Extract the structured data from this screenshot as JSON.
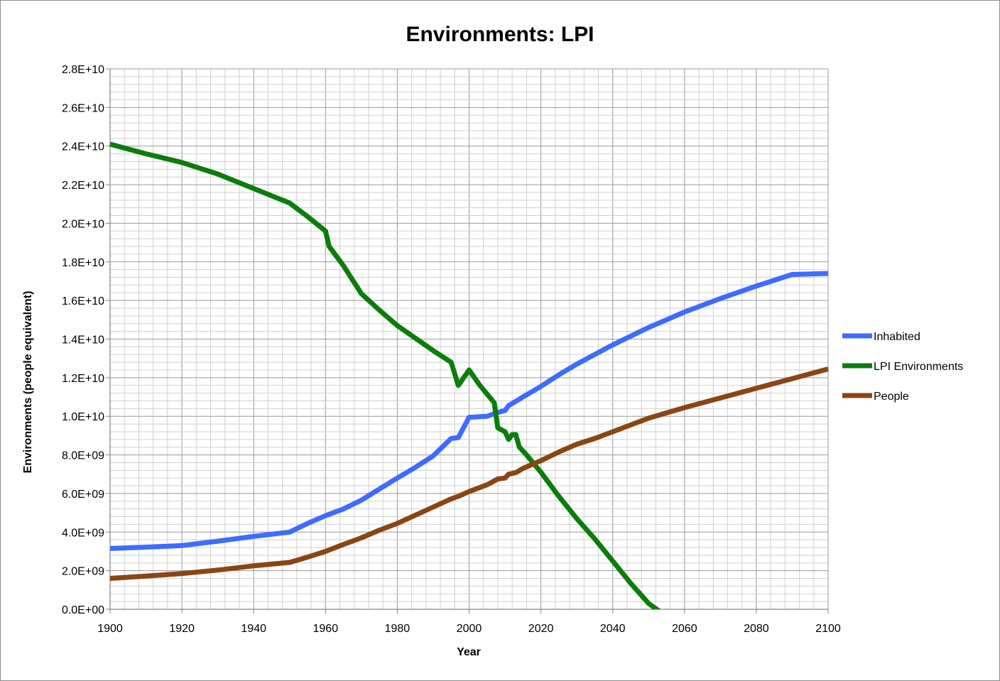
{
  "chart_data": {
    "type": "line",
    "title": "Environments: LPI",
    "xlabel": "Year",
    "ylabel": "Environments (people equivalent)",
    "xlim": [
      1900,
      2100
    ],
    "ylim": [
      0,
      28000000000
    ],
    "x_ticks": [
      "1900",
      "1920",
      "1940",
      "1960",
      "1980",
      "2000",
      "2020",
      "2040",
      "2060",
      "2080",
      "2100"
    ],
    "y_ticks": [
      "0.0E+00",
      "2.0E+09",
      "4.0E+09",
      "6.0E+09",
      "8.0E+09",
      "1.0E+10",
      "1.2E+10",
      "1.4E+10",
      "1.6E+10",
      "1.8E+10",
      "2.0E+10",
      "2.2E+10",
      "2.4E+10",
      "2.6E+10",
      "2.8E+10"
    ],
    "grid": true,
    "legend_position": "right",
    "series": [
      {
        "name": "Inhabited",
        "color": "#3d6cff",
        "points": [
          [
            1900,
            3150000000
          ],
          [
            1910,
            3220000000
          ],
          [
            1920,
            3300000000
          ],
          [
            1930,
            3530000000
          ],
          [
            1940,
            3780000000
          ],
          [
            1950,
            4000000000
          ],
          [
            1955,
            4450000000
          ],
          [
            1960,
            4850000000
          ],
          [
            1965,
            5200000000
          ],
          [
            1970,
            5650000000
          ],
          [
            1975,
            6230000000
          ],
          [
            1980,
            6800000000
          ],
          [
            1985,
            7350000000
          ],
          [
            1990,
            7950000000
          ],
          [
            1995,
            8850000000
          ],
          [
            1997,
            8900000000
          ],
          [
            2000,
            9950000000
          ],
          [
            2005,
            10000000000
          ],
          [
            2008,
            10200000000
          ],
          [
            2010,
            10300000000
          ],
          [
            2011,
            10550000000
          ],
          [
            2015,
            11000000000
          ],
          [
            2020,
            11550000000
          ],
          [
            2025,
            12150000000
          ],
          [
            2030,
            12700000000
          ],
          [
            2035,
            13200000000
          ],
          [
            2040,
            13700000000
          ],
          [
            2045,
            14150000000
          ],
          [
            2050,
            14600000000
          ],
          [
            2060,
            15400000000
          ],
          [
            2070,
            16100000000
          ],
          [
            2080,
            16750000000
          ],
          [
            2090,
            17350000000
          ],
          [
            2100,
            17400000000
          ]
        ]
      },
      {
        "name": "LPI Environments",
        "color": "#0a7d0a",
        "points": [
          [
            1900,
            24100000000
          ],
          [
            1910,
            23600000000
          ],
          [
            1920,
            23150000000
          ],
          [
            1930,
            22550000000
          ],
          [
            1940,
            21800000000
          ],
          [
            1950,
            21050000000
          ],
          [
            1955,
            20350000000
          ],
          [
            1960,
            19600000000
          ],
          [
            1961,
            18800000000
          ],
          [
            1965,
            17800000000
          ],
          [
            1970,
            16350000000
          ],
          [
            1975,
            15500000000
          ],
          [
            1980,
            14700000000
          ],
          [
            1985,
            14050000000
          ],
          [
            1990,
            13400000000
          ],
          [
            1995,
            12800000000
          ],
          [
            1997,
            11600000000
          ],
          [
            2000,
            12400000000
          ],
          [
            2003,
            11600000000
          ],
          [
            2007,
            10700000000
          ],
          [
            2008,
            9400000000
          ],
          [
            2010,
            9200000000
          ],
          [
            2011,
            8800000000
          ],
          [
            2012,
            9050000000
          ],
          [
            2013,
            9050000000
          ],
          [
            2014,
            8400000000
          ],
          [
            2016,
            8000000000
          ],
          [
            2020,
            7100000000
          ],
          [
            2025,
            5850000000
          ],
          [
            2030,
            4700000000
          ],
          [
            2035,
            3650000000
          ],
          [
            2040,
            2500000000
          ],
          [
            2045,
            1350000000
          ],
          [
            2050,
            300000000
          ],
          [
            2053,
            -100000000
          ]
        ]
      },
      {
        "name": "People",
        "color": "#8b4513",
        "points": [
          [
            1900,
            1600000000
          ],
          [
            1910,
            1720000000
          ],
          [
            1920,
            1850000000
          ],
          [
            1930,
            2030000000
          ],
          [
            1940,
            2250000000
          ],
          [
            1950,
            2430000000
          ],
          [
            1955,
            2700000000
          ],
          [
            1960,
            3000000000
          ],
          [
            1965,
            3360000000
          ],
          [
            1970,
            3700000000
          ],
          [
            1975,
            4100000000
          ],
          [
            1980,
            4450000000
          ],
          [
            1985,
            4870000000
          ],
          [
            1990,
            5300000000
          ],
          [
            1995,
            5720000000
          ],
          [
            1997,
            5850000000
          ],
          [
            2000,
            6100000000
          ],
          [
            2005,
            6450000000
          ],
          [
            2008,
            6750000000
          ],
          [
            2010,
            6800000000
          ],
          [
            2011,
            7000000000
          ],
          [
            2013,
            7080000000
          ],
          [
            2015,
            7300000000
          ],
          [
            2020,
            7700000000
          ],
          [
            2025,
            8150000000
          ],
          [
            2030,
            8550000000
          ],
          [
            2035,
            8850000000
          ],
          [
            2040,
            9200000000
          ],
          [
            2045,
            9550000000
          ],
          [
            2050,
            9900000000
          ],
          [
            2060,
            10450000000
          ],
          [
            2070,
            10950000000
          ],
          [
            2080,
            11450000000
          ],
          [
            2090,
            11950000000
          ],
          [
            2100,
            12450000000
          ]
        ]
      }
    ]
  }
}
